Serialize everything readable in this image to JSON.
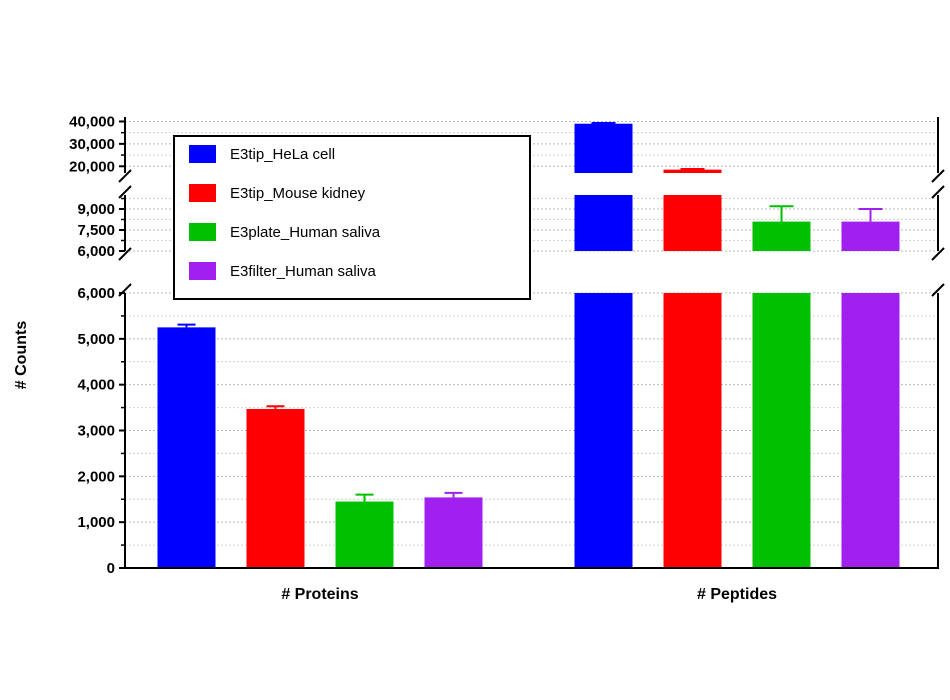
{
  "chart_data": {
    "type": "bar",
    "categories": [
      "# Proteins",
      "# Peptides"
    ],
    "ylabel": "# Counts",
    "xlabel": "",
    "title": "",
    "y_axis_broken": true,
    "y_segments": [
      {
        "range": [
          0,
          6000
        ],
        "ticks": [
          "0",
          "1,000",
          "2,000",
          "3,000",
          "4,000",
          "5,000",
          "6,000"
        ]
      },
      {
        "range": [
          6000,
          10000
        ],
        "ticks": [
          "6,000",
          "7,500",
          "9,000"
        ]
      },
      {
        "range": [
          17000,
          42000
        ],
        "ticks": [
          "20,000",
          "30,000",
          "40,000"
        ]
      }
    ],
    "grid": true,
    "legend_position": "top-left",
    "series": [
      {
        "name": "E3tip_HeLa cell",
        "color": "#0000ff",
        "values": [
          5250,
          39000
        ],
        "errors": [
          60,
          300
        ]
      },
      {
        "name": "E3tip_Mouse kidney",
        "color": "#ff0000",
        "values": [
          3470,
          18500
        ],
        "errors": [
          60,
          300
        ]
      },
      {
        "name": "E3plate_Human saliva",
        "color": "#00c000",
        "values": [
          1450,
          8100
        ],
        "errors": [
          150,
          1100
        ]
      },
      {
        "name": "E3filter_Human saliva",
        "color": "#a020f0",
        "values": [
          1540,
          8100
        ],
        "errors": [
          100,
          900
        ]
      }
    ]
  }
}
